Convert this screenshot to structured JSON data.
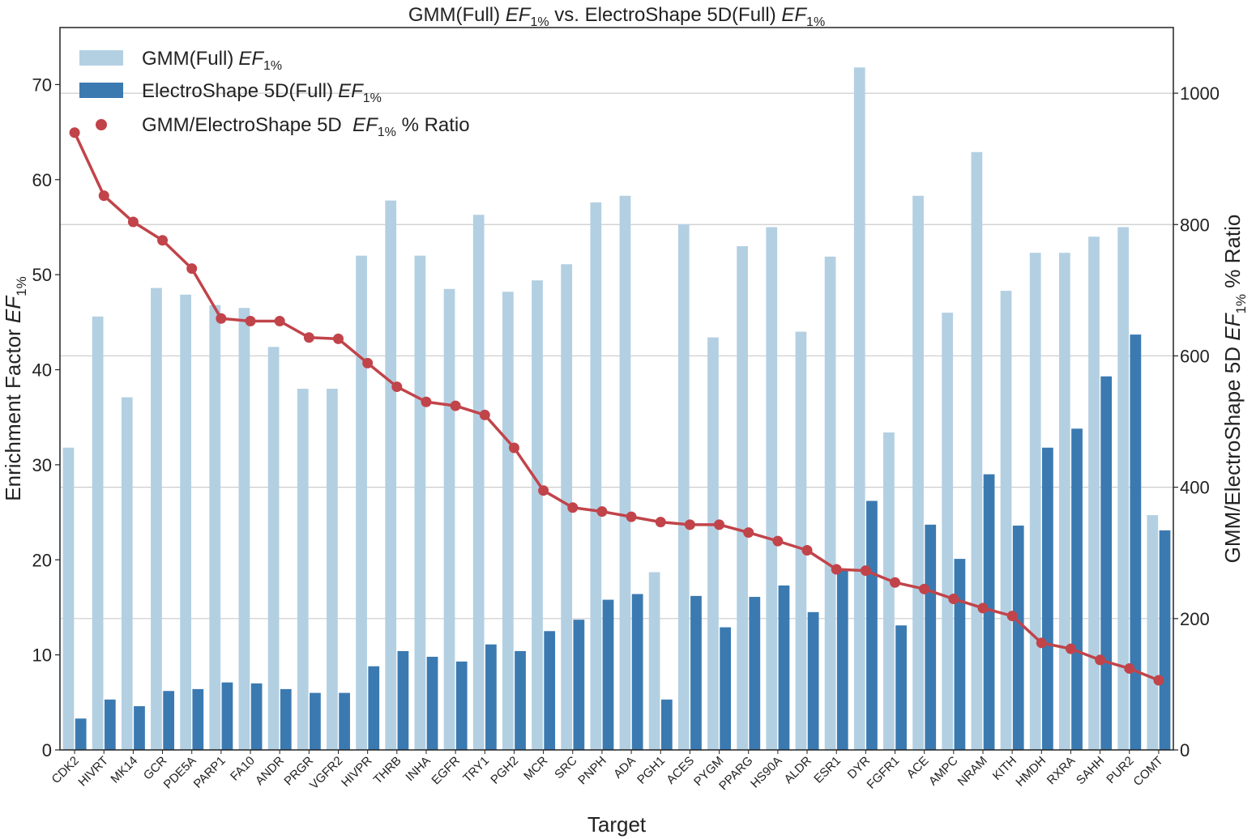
{
  "chart_data": {
    "type": "bar",
    "title_parts": [
      "GMM(Full) ",
      "EF",
      "1%",
      " vs. ElectroShape 5D(Full) ",
      "EF",
      "1%"
    ],
    "xlabel": "Target",
    "ylabel_parts": [
      "Enrichment Factor ",
      "EF",
      "1%"
    ],
    "y2label_parts": [
      "GMM/ElectroShape 5D  ",
      "EF",
      "1%",
      " % Ratio"
    ],
    "ylim": [
      0,
      76
    ],
    "y2lim": [
      0,
      1100
    ],
    "yticks": [
      0,
      10,
      20,
      30,
      40,
      50,
      60,
      70
    ],
    "y2ticks": [
      0,
      200,
      400,
      600,
      800,
      1000
    ],
    "categories": [
      "CDK2",
      "HIVRT",
      "MK14",
      "GCR",
      "PDE5A",
      "PARP1",
      "FA10",
      "ANDR",
      "PRGR",
      "VGFR2",
      "HIVPR",
      "THRB",
      "INHA",
      "EGFR",
      "TRY1",
      "PGH2",
      "MCR",
      "SRC",
      "PNPH",
      "ADA",
      "PGH1",
      "ACES",
      "PYGM",
      "PPARG",
      "HS90A",
      "ALDR",
      "ESR1",
      "DYR",
      "FGFR1",
      "ACE",
      "AMPC",
      "NRAM",
      "KITH",
      "HMDH",
      "RXRA",
      "SAHH",
      "PUR2",
      "COMT"
    ],
    "series": [
      {
        "name": "GMM(Full)",
        "sub": "1%",
        "axis": "left",
        "kind": "bar",
        "color": "#b3d0e2",
        "values": [
          31.8,
          45.6,
          37.1,
          48.6,
          47.9,
          46.8,
          46.5,
          42.4,
          38.0,
          38.0,
          52.0,
          57.8,
          52.0,
          48.5,
          56.3,
          48.2,
          49.4,
          51.1,
          57.6,
          58.3,
          18.7,
          55.3,
          43.4,
          53.0,
          55.0,
          44.0,
          51.9,
          71.8,
          33.4,
          58.3,
          46.0,
          62.9,
          48.3,
          52.3,
          52.3,
          54.0,
          55.0,
          24.7
        ]
      },
      {
        "name": "ElectroShape 5D(Full)",
        "sub": "1%",
        "axis": "left",
        "kind": "bar",
        "color": "#3b7ab1",
        "values": [
          3.3,
          5.3,
          4.6,
          6.2,
          6.4,
          7.1,
          7.0,
          6.4,
          6.0,
          6.0,
          8.8,
          10.4,
          9.8,
          9.3,
          11.1,
          10.4,
          12.5,
          13.7,
          15.8,
          16.4,
          5.3,
          16.2,
          12.9,
          16.1,
          17.3,
          14.5,
          19.0,
          26.2,
          13.1,
          23.7,
          20.1,
          29.0,
          23.6,
          31.8,
          33.8,
          39.3,
          43.7,
          23.1
        ]
      },
      {
        "name": "GMM/ElectroShape 5D  ",
        "name_suffix": " % Ratio",
        "sub": "1%",
        "axis": "right",
        "kind": "line",
        "color": "#c1444a",
        "values": [
          940,
          844,
          804,
          776,
          733,
          657,
          653,
          653,
          628,
          626,
          589,
          553,
          530,
          524,
          510,
          460,
          395,
          369,
          363,
          355,
          347,
          343,
          343,
          331,
          318,
          304,
          275,
          273,
          255,
          245,
          230,
          216,
          204,
          163,
          154,
          137,
          124,
          106
        ]
      }
    ],
    "legend_position": "upper-left",
    "grid": "horizontal-right-axis"
  }
}
